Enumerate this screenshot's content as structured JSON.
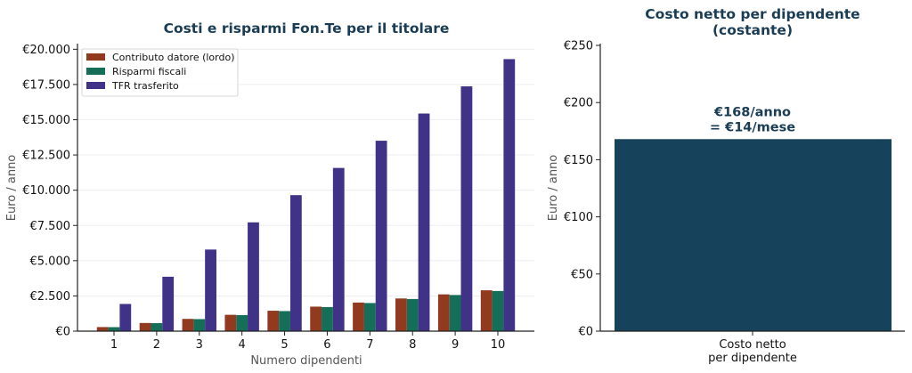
{
  "colors": {
    "contributo": "#913a1f",
    "risparmi": "#146e58",
    "tfr": "#3f3287",
    "netto": "#17425c",
    "title": "#1a3d55"
  },
  "chart_data": [
    {
      "type": "bar",
      "title": "Costi e risparmi Fon.Te per il titolare",
      "xlabel": "Numero dipendenti",
      "ylabel": "Euro / anno",
      "ylim": [
        0,
        20400
      ],
      "grid": true,
      "legend_position": "top-left",
      "categories": [
        "1",
        "2",
        "3",
        "4",
        "5",
        "6",
        "7",
        "8",
        "9",
        "10"
      ],
      "yticks": [
        0,
        2500,
        5000,
        7500,
        10000,
        12500,
        15000,
        17500,
        20000
      ],
      "ytick_labels": [
        "€0",
        "€2.500",
        "€5.000",
        "€7.500",
        "€10.000",
        "€12.500",
        "€15.000",
        "€17.500",
        "€20.000"
      ],
      "series": [
        {
          "name": "Contributo datore (lordo)",
          "color_key": "contributo",
          "values": [
            290,
            580,
            870,
            1160,
            1450,
            1740,
            2030,
            2320,
            2610,
            2900
          ]
        },
        {
          "name": "Risparmi fiscali",
          "color_key": "risparmi",
          "values": [
            285,
            570,
            855,
            1140,
            1425,
            1710,
            1995,
            2280,
            2565,
            2850
          ]
        },
        {
          "name": "TFR trasferito",
          "color_key": "tfr",
          "values": [
            1930,
            3860,
            5790,
            7720,
            9650,
            11580,
            13510,
            15440,
            17370,
            19300
          ]
        }
      ]
    },
    {
      "type": "bar",
      "title_lines": [
        "Costo netto per dipendente",
        "(costante)"
      ],
      "xlabel": "",
      "ylabel": "Euro / anno",
      "ylim": [
        0,
        250
      ],
      "grid": false,
      "categories": [
        "Costo netto per dipendente"
      ],
      "category_lines": [
        "Costo netto",
        "per dipendente"
      ],
      "yticks": [
        0,
        50,
        100,
        150,
        200,
        250
      ],
      "ytick_labels": [
        "€0",
        "€50",
        "€100",
        "€150",
        "€200",
        "€250"
      ],
      "values": [
        168
      ],
      "annotation_lines": [
        "€168/anno",
        "= €14/mese"
      ]
    }
  ]
}
